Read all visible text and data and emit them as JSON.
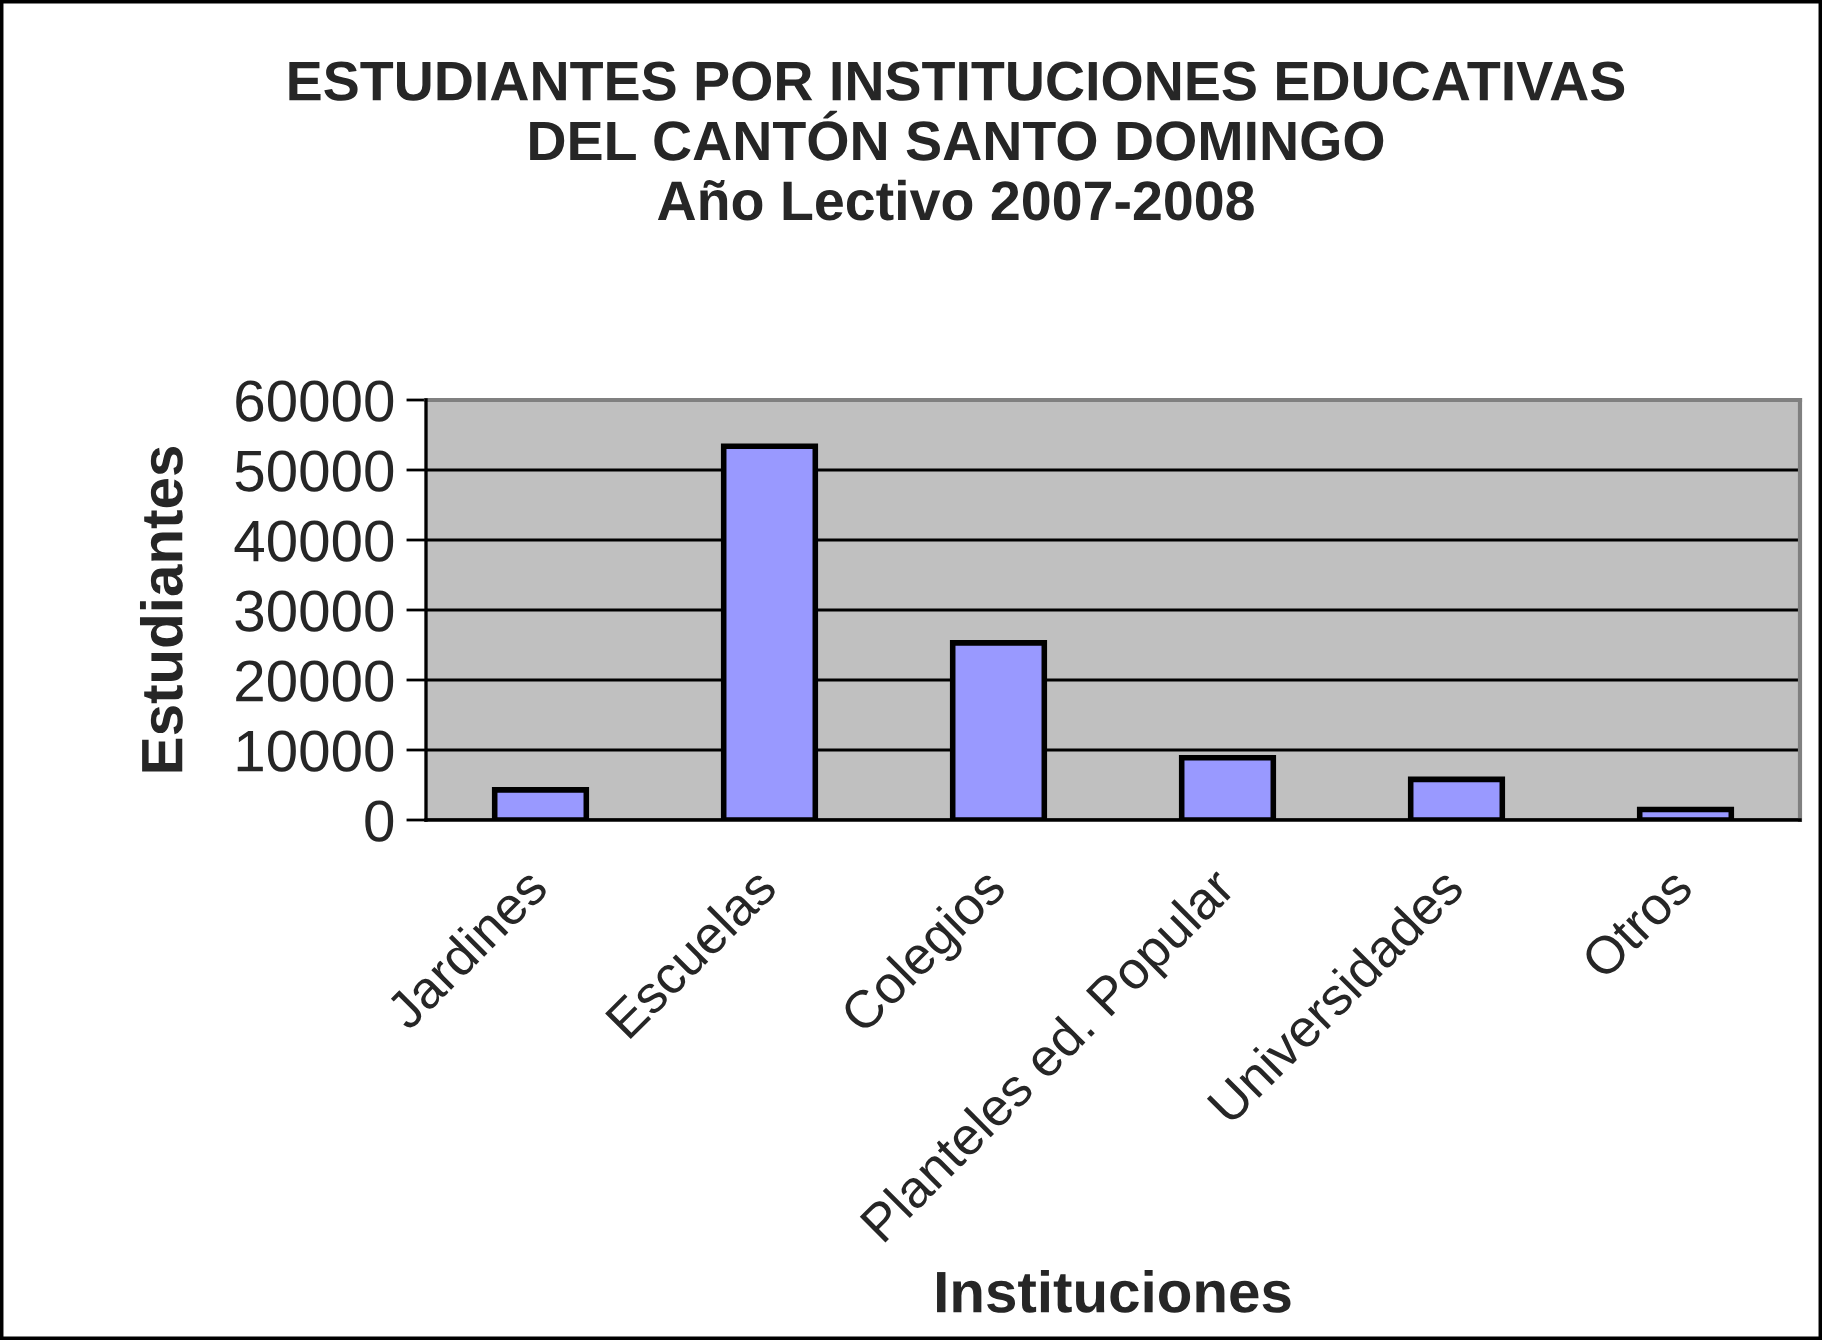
{
  "chart_data": {
    "type": "bar",
    "title": "ESTUDIANTES POR INSTITUCIONES EDUCATIVAS\nDEL CANTÓN SANTO DOMINGO\nAño Lectivo 2007-2008",
    "xlabel": "Instituciones",
    "ylabel": "Estudiantes",
    "categories": [
      "Jardines",
      "Escuelas",
      "Colegios",
      "Planteles ed. Popular",
      "Universidades",
      "Otros"
    ],
    "values": [
      4300,
      53400,
      25300,
      8900,
      5800,
      1500
    ],
    "color": "#9999ff",
    "ylim": [
      0,
      60000
    ],
    "yticks": [
      0,
      10000,
      20000,
      30000,
      40000,
      50000,
      60000
    ],
    "grid": "y"
  }
}
